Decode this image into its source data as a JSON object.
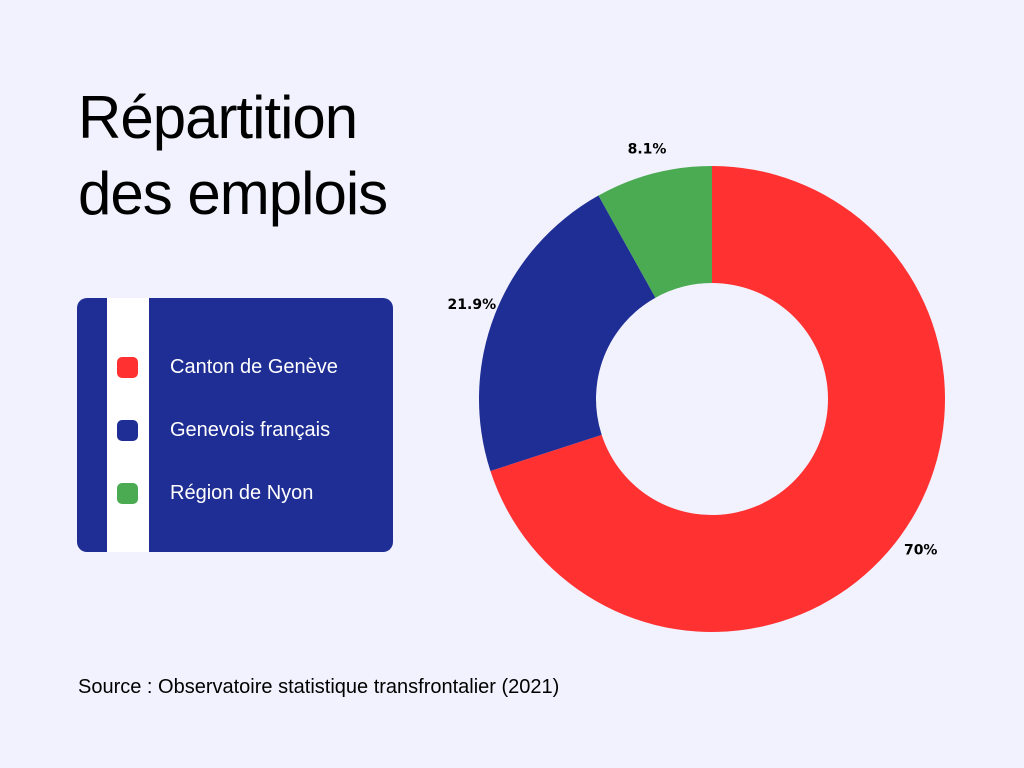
{
  "title_lines": [
    "Répartition",
    "des emplois"
  ],
  "source": "Source : Observatoire statistique transfrontalier (2021)",
  "chart_data": {
    "type": "pie",
    "donut": true,
    "labels": [
      "Canton de Genève",
      "Genevois français",
      "Région de Nyon"
    ],
    "values": [
      70,
      21.9,
      8.1
    ],
    "value_labels": [
      "70%",
      "21.9%",
      "8.1%"
    ],
    "colors": [
      "#ff3131",
      "#1f2e94",
      "#4aab52"
    ],
    "legend_position": "left"
  }
}
